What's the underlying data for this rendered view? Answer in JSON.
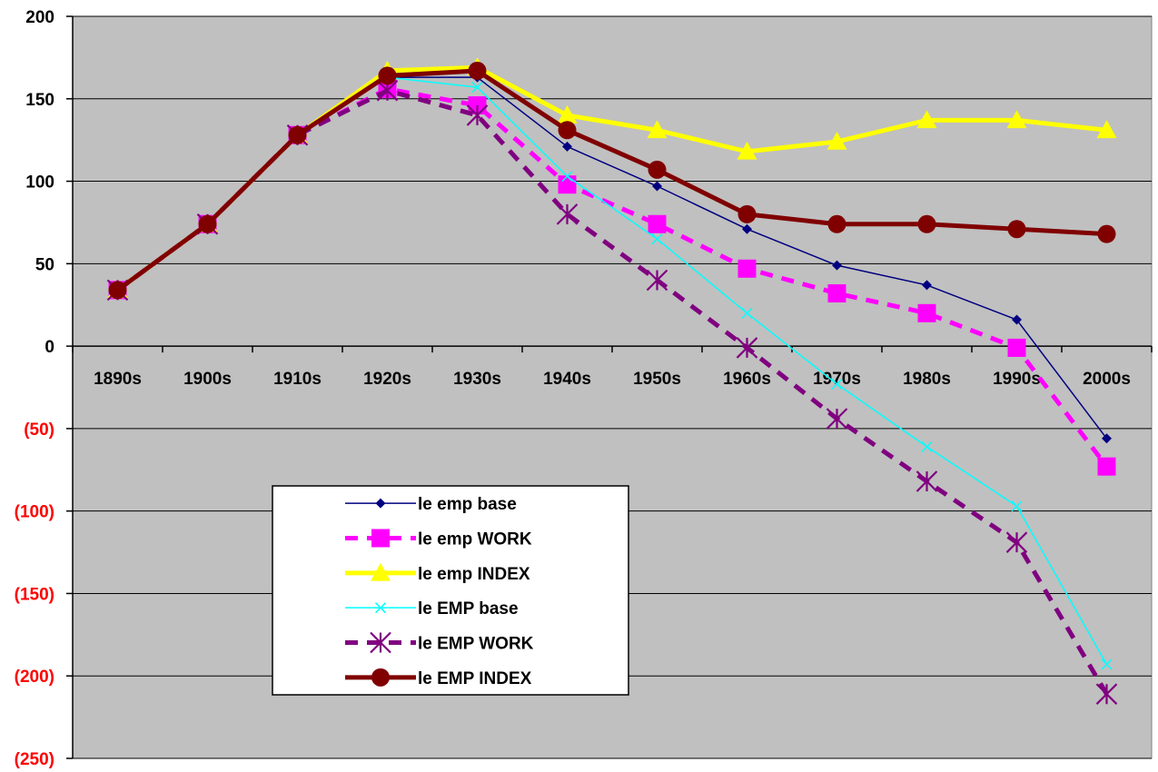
{
  "chart_data": {
    "type": "line",
    "title": "",
    "xlabel": "",
    "ylabel": "",
    "categories": [
      "1890s",
      "1900s",
      "1910s",
      "1920s",
      "1930s",
      "1940s",
      "1950s",
      "1960s",
      "1970s",
      "1980s",
      "1990s",
      "2000s"
    ],
    "ylim": [
      -250,
      200
    ],
    "y_ticks": [
      200,
      150,
      100,
      50,
      0,
      -50,
      -100,
      -150,
      -200,
      -250
    ],
    "y_tick_labels": [
      "200",
      "150",
      "100",
      "50",
      "0",
      "(50)",
      "(100)",
      "(150)",
      "(200)",
      "(250)"
    ],
    "positive_tick_color": "#000000",
    "negative_tick_color": "#ff0000",
    "plot_background": "#c0c0c0",
    "grid": true,
    "legend_position": "lower-left inside plot",
    "series": [
      {
        "name": "le emp base",
        "color": "#000080",
        "dash": "solid",
        "marker": "diamond",
        "line_width": 1.5,
        "values": [
          34,
          74,
          128,
          163,
          163,
          121,
          97,
          71,
          49,
          37,
          16,
          -56
        ]
      },
      {
        "name": "le emp WORK",
        "color": "#ff00ff",
        "dash": "dashed",
        "marker": "square",
        "line_width": 5,
        "values": [
          34,
          74,
          128,
          156,
          146,
          98,
          74,
          47,
          32,
          20,
          -1,
          -73
        ]
      },
      {
        "name": "le emp INDEX",
        "color": "#ffff00",
        "dash": "solid",
        "marker": "triangle",
        "line_width": 5,
        "values": [
          34,
          74,
          128,
          167,
          169,
          140,
          131,
          118,
          124,
          137,
          137,
          131
        ]
      },
      {
        "name": "le EMP base",
        "color": "#00ffff",
        "dash": "solid",
        "marker": "x",
        "line_width": 1.5,
        "values": [
          34,
          74,
          128,
          163,
          157,
          103,
          65,
          20,
          -23,
          -61,
          -97,
          -193
        ]
      },
      {
        "name": "le EMP WORK",
        "color": "#800080",
        "dash": "dashed",
        "marker": "asterisk",
        "line_width": 5,
        "values": [
          34,
          74,
          128,
          155,
          140,
          80,
          40,
          -1,
          -44,
          -82,
          -119,
          -211
        ]
      },
      {
        "name": "le EMP INDEX",
        "color": "#800000",
        "dash": "solid",
        "marker": "circle",
        "line_width": 5,
        "values": [
          34,
          74,
          128,
          164,
          167,
          131,
          107,
          80,
          74,
          74,
          71,
          68
        ]
      }
    ]
  }
}
